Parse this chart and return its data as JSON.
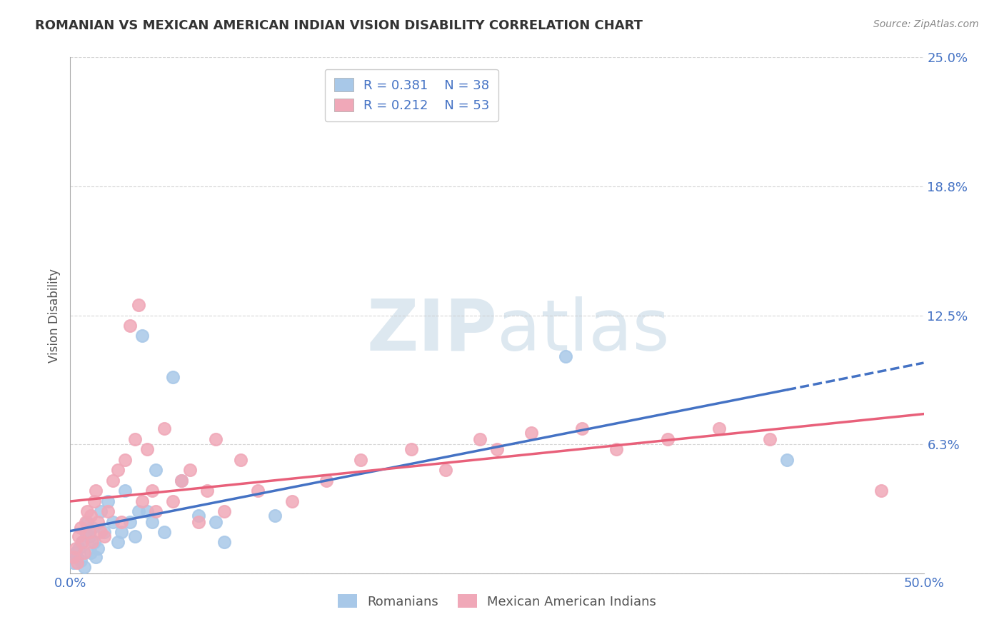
{
  "title": "ROMANIAN VS MEXICAN AMERICAN INDIAN VISION DISABILITY CORRELATION CHART",
  "source": "Source: ZipAtlas.com",
  "ylabel": "Vision Disability",
  "xlim": [
    0.0,
    0.5
  ],
  "ylim": [
    0.0,
    0.25
  ],
  "yticks": [
    0.0,
    0.0625,
    0.125,
    0.1875,
    0.25
  ],
  "ytick_labels": [
    "",
    "6.3%",
    "12.5%",
    "18.8%",
    "25.0%"
  ],
  "xticks": [
    0.0,
    0.5
  ],
  "xtick_labels": [
    "0.0%",
    "50.0%"
  ],
  "legend_r1": "R = 0.381",
  "legend_n1": "N = 38",
  "legend_r2": "R = 0.212",
  "legend_n2": "N = 53",
  "color_blue": "#A8C8E8",
  "color_pink": "#F0A8B8",
  "color_blue_line": "#4472C4",
  "color_pink_line": "#E8607A",
  "color_text_blue": "#4472C4",
  "watermark_color": "#DDE8F0",
  "romanians_x": [
    0.002,
    0.003,
    0.004,
    0.005,
    0.006,
    0.007,
    0.008,
    0.009,
    0.01,
    0.011,
    0.012,
    0.013,
    0.014,
    0.015,
    0.016,
    0.018,
    0.02,
    0.022,
    0.025,
    0.028,
    0.03,
    0.032,
    0.035,
    0.038,
    0.04,
    0.042,
    0.045,
    0.048,
    0.05,
    0.055,
    0.06,
    0.065,
    0.075,
    0.085,
    0.09,
    0.12,
    0.29,
    0.42
  ],
  "romanians_y": [
    0.005,
    0.01,
    0.008,
    0.012,
    0.006,
    0.015,
    0.003,
    0.02,
    0.025,
    0.018,
    0.01,
    0.022,
    0.015,
    0.008,
    0.012,
    0.03,
    0.02,
    0.035,
    0.025,
    0.015,
    0.02,
    0.04,
    0.025,
    0.018,
    0.03,
    0.115,
    0.03,
    0.025,
    0.05,
    0.02,
    0.095,
    0.045,
    0.028,
    0.025,
    0.015,
    0.028,
    0.105,
    0.055
  ],
  "mexican_x": [
    0.002,
    0.003,
    0.004,
    0.005,
    0.006,
    0.007,
    0.008,
    0.009,
    0.01,
    0.011,
    0.012,
    0.013,
    0.014,
    0.015,
    0.016,
    0.018,
    0.02,
    0.022,
    0.025,
    0.028,
    0.03,
    0.032,
    0.035,
    0.038,
    0.04,
    0.042,
    0.045,
    0.048,
    0.05,
    0.055,
    0.06,
    0.065,
    0.07,
    0.075,
    0.08,
    0.085,
    0.09,
    0.1,
    0.11,
    0.13,
    0.15,
    0.17,
    0.2,
    0.22,
    0.24,
    0.25,
    0.27,
    0.3,
    0.32,
    0.35,
    0.38,
    0.41,
    0.475
  ],
  "mexican_y": [
    0.008,
    0.012,
    0.005,
    0.018,
    0.022,
    0.015,
    0.01,
    0.025,
    0.03,
    0.02,
    0.028,
    0.015,
    0.035,
    0.04,
    0.025,
    0.02,
    0.018,
    0.03,
    0.045,
    0.05,
    0.025,
    0.055,
    0.12,
    0.065,
    0.13,
    0.035,
    0.06,
    0.04,
    0.03,
    0.07,
    0.035,
    0.045,
    0.05,
    0.025,
    0.04,
    0.065,
    0.03,
    0.055,
    0.04,
    0.035,
    0.045,
    0.055,
    0.06,
    0.05,
    0.065,
    0.06,
    0.068,
    0.07,
    0.06,
    0.065,
    0.07,
    0.065,
    0.04
  ],
  "grid_color": "#CCCCCC",
  "background_color": "#FFFFFF",
  "title_color": "#333333",
  "source_color": "#888888"
}
